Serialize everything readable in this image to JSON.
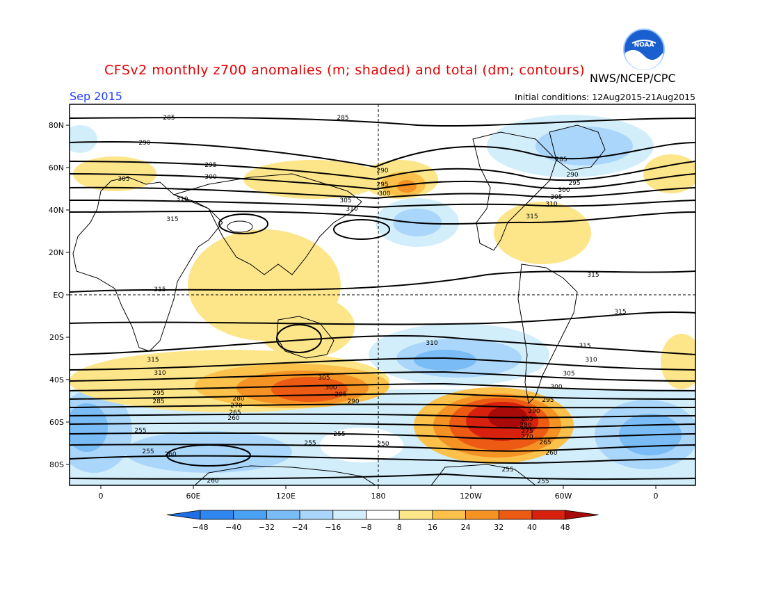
{
  "title": "CFSv2 monthly z700 anomalies (m; shaded) and total (dm; contours)",
  "agency": "NWS/NCEP/CPC",
  "logo_text": "NOAA",
  "month": "Sep 2015",
  "initial_conditions": "Initial conditions: 12Aug2015-21Aug2015",
  "lat_labels": [
    "80N",
    "60N",
    "40N",
    "20N",
    "EQ",
    "20S",
    "40S",
    "60S",
    "80S"
  ],
  "lon_labels": [
    "0",
    "60E",
    "120E",
    "180",
    "120W",
    "60W",
    "0"
  ],
  "colorbar": {
    "labels": [
      "-48",
      "-40",
      "-32",
      "-24",
      "-16",
      "-8",
      "8",
      "16",
      "24",
      "32",
      "40",
      "48"
    ],
    "colors": [
      "#1e6ee6",
      "#2f86ee",
      "#4aa0f2",
      "#79bcf6",
      "#a9d6fa",
      "#d2eefb",
      "#ffffff",
      "#fde58a",
      "#fbc14a",
      "#f59224",
      "#ec5a14",
      "#d8200e",
      "#a80a0a"
    ]
  },
  "contours": {
    "labels": [
      "285",
      "290",
      "295",
      "300",
      "305",
      "310",
      "315",
      "255",
      "260",
      "265",
      "270",
      "275",
      "280",
      "250"
    ]
  },
  "colors": {
    "title": "#e60000",
    "month": "#1e3cff"
  }
}
